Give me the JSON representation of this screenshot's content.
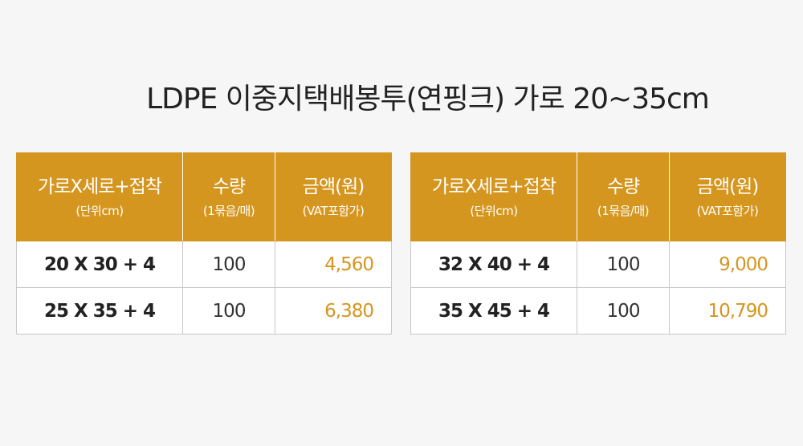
{
  "title": "LDPE 이중지택배봉투(연핑크) 가로 20~35cm",
  "colors": {
    "accent": "#d5961f",
    "header_text": "#ffffff",
    "background": "#f6f6f6"
  },
  "columns": [
    {
      "main": "가로X세로+접착",
      "sub": "(단위cm)"
    },
    {
      "main": "수량",
      "sub": "(1묶음/매)"
    },
    {
      "main": "금액(원)",
      "sub": "(VAT포함가)"
    }
  ],
  "tables": [
    {
      "rows": [
        {
          "size": "20 X 30 + 4",
          "qty": "100",
          "price": "4,560"
        },
        {
          "size": "25 X 35 + 4",
          "qty": "100",
          "price": "6,380"
        }
      ]
    },
    {
      "rows": [
        {
          "size": "32 X 40 + 4",
          "qty": "100",
          "price": "9,000"
        },
        {
          "size": "35 X 45 + 4",
          "qty": "100",
          "price": "10,790"
        }
      ]
    }
  ]
}
